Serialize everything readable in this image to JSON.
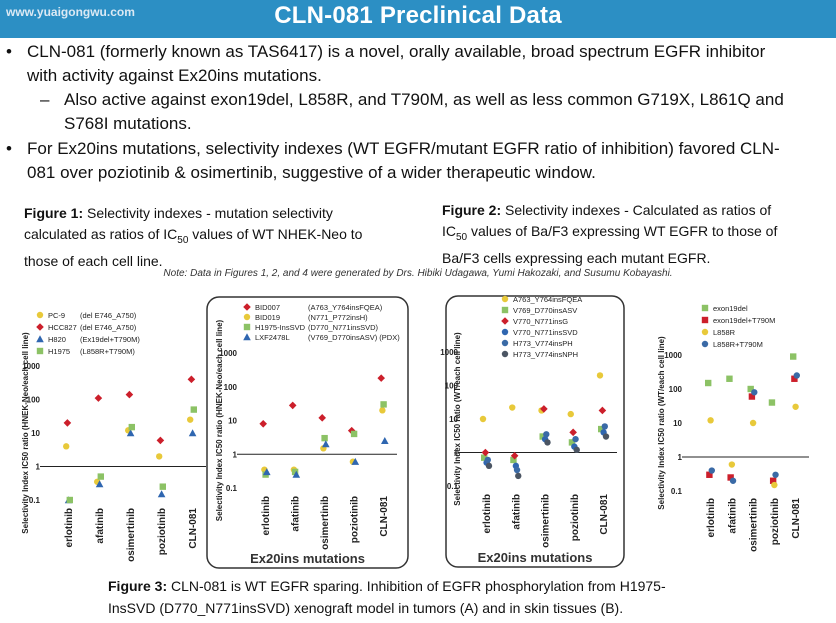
{
  "watermark": "www.yuaigongwu.com",
  "title": "CLN-081 Preclinical Data",
  "bullets": {
    "b1_line1": "CLN-081 (formerly known as TAS6417) is a novel, orally available, broad spectrum EGFR inhibitor",
    "b1_line2": "with activity against Ex20ins mutations.",
    "b1_sub_line1": "Also active against exon19del, L858R, and T790M, as well as less common G719X, L861Q and",
    "b1_sub_line2": "S768I mutations.",
    "b2_line1": "For Ex20ins mutations, selectivity indexes (WT EGFR/mutant EGFR ratio of inhibition) favored CLN-",
    "b2_line2": "081 over poziotinib & osimertinib, suggestive of a wider therapeutic window."
  },
  "figure1": {
    "label": "Figure 1:",
    "text1": "Selectivity indexes - mutation selectivity",
    "text2a": "calculated as ratios of IC",
    "text2sub": "50",
    "text2b": " values of WT NHEK-Neo to",
    "text3": "those of each cell line."
  },
  "figure2": {
    "label": "Figure 2:",
    "text1": "Selectivity indexes - Calculated as ratios of",
    "text2a": "IC",
    "text2sub": "50",
    "text2b": " values of Ba/F3 expressing WT EGFR to those of",
    "text3": "Ba/F3 cells expressing each mutant EGFR."
  },
  "note": "Note: Data in Figures 1, 2, and 4 were generated by Drs. Hibiki Udagawa, Yumi Hakozaki, and Susumu Kobayashi.",
  "figure3": {
    "label": "Figure 3:",
    "text1": "CLN-081 is WT EGFR sparing. Inhibition of EGFR phosphorylation from H1975-",
    "text2": "InsSVD (D770_N771insSVD) xenograft model in tumors (A) and in skin tissues (B)."
  },
  "chart_data": [
    {
      "type": "scatter",
      "ylabel": "Selectivity Index IC50 ratio (HNEK-Neo/each cell line)",
      "yscale": "log",
      "ylim": [
        0.1,
        1000
      ],
      "yticks": [
        "0.1",
        "1",
        "10",
        "100",
        "1000"
      ],
      "categories": [
        "erlotinib",
        "afatinib",
        "osimertinib",
        "poziotinib",
        "CLN-081"
      ],
      "series": [
        {
          "name": "PC-9",
          "mutation": "(del E746_A750)",
          "color": "#e8c93a",
          "marker": "circle",
          "values": [
            4,
            0.35,
            12,
            2,
            25
          ]
        },
        {
          "name": "HCC827",
          "mutation": "(del E746_A750)",
          "color": "#cc1f2b",
          "marker": "diamond",
          "values": [
            20,
            110,
            140,
            6,
            400
          ]
        },
        {
          "name": "H820",
          "mutation": "(Ex19del+T790M)",
          "color": "#2f66b0",
          "marker": "triangle",
          "values": [
            0.1,
            0.3,
            10,
            0.15,
            10
          ]
        },
        {
          "name": "H1975",
          "mutation": "(L858R+T790M)",
          "color": "#8cc265",
          "marker": "square",
          "values": [
            0.1,
            0.5,
            15,
            0.25,
            50
          ]
        }
      ]
    },
    {
      "type": "scatter",
      "ylabel": "Selectivity Index IC50 ratio (HNEK-Neo/each cell line)",
      "yscale": "log",
      "ylim": [
        0.1,
        1000
      ],
      "yticks": [
        "0.1",
        "1",
        "10",
        "100",
        "1000"
      ],
      "categories": [
        "erlotinib",
        "afatinib",
        "osimertinib",
        "poziotinib",
        "CLN-081"
      ],
      "group_label": "Ex20ins mutations",
      "series": [
        {
          "name": "BID007",
          "mutation": "(A763_Y764insFQEA)",
          "color": "#cc1f2b",
          "marker": "diamond",
          "values": [
            8,
            28,
            12,
            5,
            180
          ]
        },
        {
          "name": "BID019",
          "mutation": "(N771_P772insH)",
          "color": "#e8c93a",
          "marker": "circle",
          "values": [
            0.35,
            0.35,
            1.5,
            0.6,
            20
          ]
        },
        {
          "name": "H1975-InsSVD",
          "mutation": "(D770_N771insSVD)",
          "color": "#8cc265",
          "marker": "square",
          "values": [
            0.25,
            0.3,
            3,
            4,
            30
          ]
        },
        {
          "name": "LXF2478L",
          "mutation": "(V769_D770insASV) (PDX)",
          "color": "#2f66b0",
          "marker": "triangle",
          "values": [
            0.3,
            0.25,
            2,
            0.6,
            2.5
          ]
        }
      ]
    },
    {
      "type": "scatter",
      "ylabel": "Selectivity Index IC50 ratio (WT/each cell line)",
      "yscale": "log",
      "ylim": [
        0.1,
        1000
      ],
      "yticks": [
        "0.1",
        "1",
        "10",
        "100",
        "1000"
      ],
      "categories": [
        "erlotinib",
        "afatinib",
        "osimertinib",
        "poziotinib",
        "CLN-081"
      ],
      "group_label": "Ex20ins mutations",
      "series": [
        {
          "name": "A763_Y764insFQEA",
          "color": "#e8c93a",
          "marker": "circle",
          "values": [
            10,
            22,
            18,
            14,
            200
          ]
        },
        {
          "name": "V769_D770insASV",
          "color": "#8cc265",
          "marker": "square",
          "values": [
            0.7,
            0.6,
            3,
            2,
            5
          ]
        },
        {
          "name": "V770_N771insG",
          "color": "#cc1f2b",
          "marker": "diamond",
          "values": [
            1,
            0.8,
            20,
            4,
            18
          ]
        },
        {
          "name": "V770_N771insSVD",
          "color": "#2f66b0",
          "marker": "circle",
          "values": [
            0.5,
            0.4,
            2.5,
            1.5,
            4
          ]
        },
        {
          "name": "H773_V774insPH",
          "color": "#3a6aa6",
          "marker": "circle",
          "values": [
            0.6,
            0.3,
            3.5,
            2.5,
            6
          ]
        },
        {
          "name": "H773_V774insNPH",
          "color": "#4b5563",
          "marker": "circle",
          "values": [
            0.4,
            0.2,
            2,
            1.2,
            3
          ]
        }
      ]
    },
    {
      "type": "scatter",
      "ylabel": "Selectivity Index IC50 ratio (WT/each cell line)",
      "yscale": "log",
      "ylim": [
        0.1,
        1000
      ],
      "yticks": [
        "0.1",
        "1",
        "10",
        "100",
        "1000"
      ],
      "categories": [
        "erlotinib",
        "afatinib",
        "osimertinib",
        "poziotinib",
        "CLN-081"
      ],
      "series": [
        {
          "name": "exon19del",
          "color": "#8cc265",
          "marker": "square",
          "values": [
            150,
            200,
            100,
            40,
            900
          ]
        },
        {
          "name": "exon19del+T790M",
          "color": "#cc1f2b",
          "marker": "square",
          "values": [
            0.3,
            0.25,
            60,
            0.2,
            200
          ]
        },
        {
          "name": "L858R",
          "color": "#e8c93a",
          "marker": "circle",
          "values": [
            12,
            0.6,
            10,
            0.15,
            30
          ]
        },
        {
          "name": "L858R+T790M",
          "color": "#3a6aa6",
          "marker": "circle",
          "values": [
            0.4,
            0.2,
            80,
            0.3,
            250
          ]
        }
      ]
    }
  ]
}
